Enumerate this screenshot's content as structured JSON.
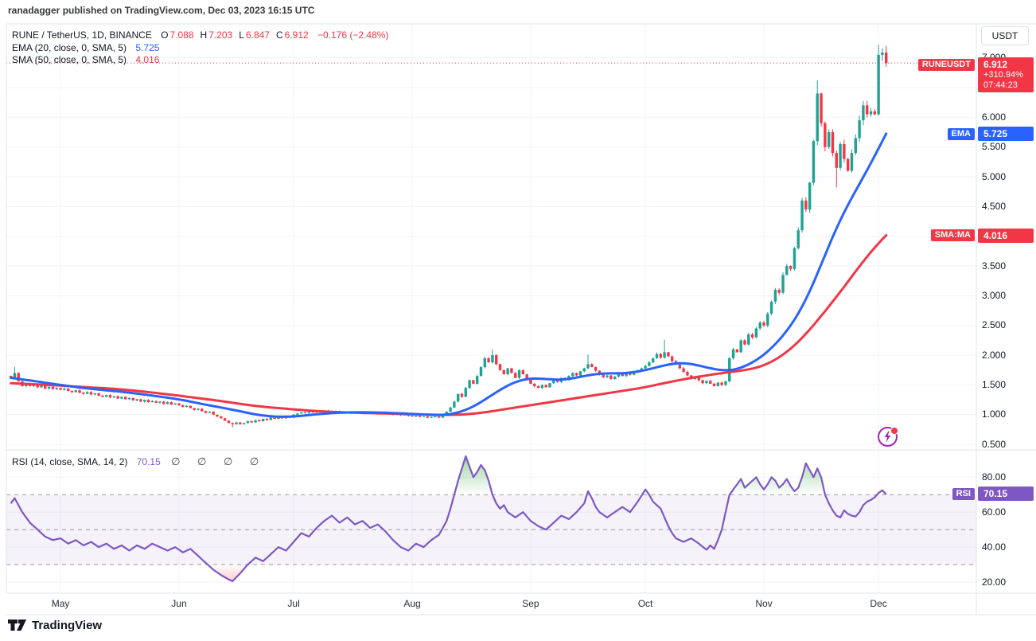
{
  "header": {
    "published_line": "ranadagger published on TradingView.com, Dec 03, 2023 16:15 UTC"
  },
  "legend": {
    "symbol_title": "RUNE / TetherUS, 1D, BINANCE",
    "ohlc": [
      {
        "k": "O",
        "v": "7.088"
      },
      {
        "k": "H",
        "v": "7.203"
      },
      {
        "k": "L",
        "v": "6.847"
      },
      {
        "k": "C",
        "v": "6.912"
      }
    ],
    "change": "−0.176 (−2.48%)",
    "ema_label": "EMA (20, close, 0, SMA, 5)",
    "ema_value": "5.725",
    "sma_label": "SMA (50, close, 0, SMA, 5)",
    "sma_value": "4.016",
    "rsi_label": "RSI (14, close, SMA, 14, 2)",
    "rsi_value": "70.15",
    "rsi_empty_slots": "∅ ∅ ∅ ∅"
  },
  "axis": {
    "currency_button": "USDT",
    "price_ticks": [
      {
        "label": "7.000",
        "v": 7.0
      },
      {
        "label": "6.000",
        "v": 6.0
      },
      {
        "label": "5.500",
        "v": 5.5
      },
      {
        "label": "5.000",
        "v": 5.0
      },
      {
        "label": "4.500",
        "v": 4.5
      },
      {
        "label": "3.500",
        "v": 3.5
      },
      {
        "label": "3.000",
        "v": 3.0
      },
      {
        "label": "2.500",
        "v": 2.5
      },
      {
        "label": "2.000",
        "v": 2.0
      },
      {
        "label": "1.500",
        "v": 1.5
      },
      {
        "label": "1.000",
        "v": 1.0
      },
      {
        "label": "0.500",
        "v": 0.5
      }
    ],
    "rsi_ticks": [
      {
        "label": "80.00",
        "v": 80
      },
      {
        "label": "60.00",
        "v": 60
      },
      {
        "label": "40.00",
        "v": 40
      },
      {
        "label": "20.00",
        "v": 20
      }
    ],
    "months": [
      {
        "label": "May",
        "i": 13
      },
      {
        "label": "Jun",
        "i": 44
      },
      {
        "label": "Jul",
        "i": 74
      },
      {
        "label": "Aug",
        "i": 105
      },
      {
        "label": "Sep",
        "i": 136
      },
      {
        "label": "Oct",
        "i": 166
      },
      {
        "label": "Nov",
        "i": 197
      },
      {
        "label": "Dec",
        "i": 227
      }
    ]
  },
  "tags": {
    "symbol": {
      "name": "RUNEUSDT",
      "price": "6.912",
      "change": "+310.94%",
      "countdown": "07:44:23"
    },
    "ema": {
      "name": "EMA",
      "value": "5.725"
    },
    "sma": {
      "name": "SMA:MA",
      "value": "4.016"
    },
    "rsi": {
      "name": "RSI",
      "value": "70.15"
    }
  },
  "footer": {
    "logo_text": "TradingView"
  },
  "colors": {
    "up": "#1fa294",
    "down": "#f23645",
    "ema": "#2962ff",
    "sma": "#f23645",
    "rsi": "#7e57c2",
    "grid": "#f0f3fa",
    "border": "#e0e3eb",
    "dashed": "#787b86",
    "text": "#131722",
    "band": "rgba(126,87,194,0.08)",
    "overbought_fill": "#4caf50",
    "oversold_fill": "#f23645",
    "dotted_price_line": "#f23645"
  },
  "chart_data": {
    "type": "candlestick",
    "title": "RUNE / TetherUS, 1D, BINANCE",
    "interval": "1D",
    "legend_position": "top-left",
    "grid": true,
    "price_axis": {
      "min": 0.5,
      "max": 7.0,
      "step": 0.5
    },
    "rsi_axis": {
      "min": 20,
      "max": 80,
      "levels": {
        "overbought": 70,
        "mid": 50,
        "oversold": 30
      }
    },
    "x_axis_months": [
      "May",
      "Jun",
      "Jul",
      "Aug",
      "Sep",
      "Oct",
      "Nov",
      "Dec"
    ],
    "last_candle": {
      "o": 7.088,
      "h": 7.203,
      "l": 6.847,
      "c": 6.912
    },
    "current_price": 6.912,
    "closes": [
      1.62,
      1.7,
      1.56,
      1.48,
      1.52,
      1.48,
      1.5,
      1.46,
      1.49,
      1.44,
      1.47,
      1.43,
      1.45,
      1.42,
      1.44,
      1.4,
      1.38,
      1.41,
      1.37,
      1.35,
      1.38,
      1.34,
      1.36,
      1.32,
      1.3,
      1.33,
      1.29,
      1.31,
      1.27,
      1.3,
      1.26,
      1.28,
      1.24,
      1.26,
      1.22,
      1.25,
      1.21,
      1.23,
      1.2,
      1.22,
      1.18,
      1.21,
      1.17,
      1.19,
      1.16,
      1.13,
      1.15,
      1.11,
      1.08,
      1.1,
      1.06,
      1.03,
      1.05,
      1.0,
      0.97,
      0.94,
      0.9,
      0.86,
      0.84,
      0.87,
      0.84,
      0.86,
      0.89,
      0.87,
      0.91,
      0.89,
      0.93,
      0.91,
      0.95,
      0.93,
      0.96,
      0.94,
      0.97,
      0.95,
      1.0,
      1.02,
      1.04,
      1.03,
      1.05,
      1.04,
      1.06,
      1.05,
      1.07,
      1.06,
      1.05,
      1.06,
      1.04,
      1.05,
      1.03,
      1.04,
      1.05,
      1.03,
      1.04,
      1.02,
      1.03,
      1.04,
      1.02,
      1.03,
      1.01,
      1.02,
      1.0,
      1.01,
      0.99,
      1.0,
      0.98,
      0.97,
      0.98,
      0.96,
      0.97,
      0.95,
      0.96,
      0.97,
      0.95,
      1.0,
      1.05,
      1.12,
      1.22,
      1.35,
      1.3,
      1.45,
      1.58,
      1.52,
      1.65,
      1.8,
      1.95,
      1.88,
      2.0,
      1.85,
      1.75,
      1.68,
      1.78,
      1.7,
      1.62,
      1.75,
      1.68,
      1.6,
      1.52,
      1.48,
      1.45,
      1.5,
      1.46,
      1.53,
      1.58,
      1.55,
      1.62,
      1.58,
      1.65,
      1.7,
      1.66,
      1.73,
      1.78,
      1.85,
      1.8,
      1.74,
      1.68,
      1.63,
      1.66,
      1.6,
      1.64,
      1.68,
      1.65,
      1.7,
      1.67,
      1.72,
      1.75,
      1.78,
      1.82,
      1.88,
      1.95,
      2.02,
      1.96,
      2.05,
      1.98,
      1.9,
      1.84,
      1.78,
      1.72,
      1.66,
      1.6,
      1.64,
      1.58,
      1.53,
      1.57,
      1.52,
      1.48,
      1.54,
      1.5,
      1.56,
      1.95,
      2.1,
      2.05,
      2.25,
      2.18,
      2.35,
      2.3,
      2.45,
      2.55,
      2.5,
      2.7,
      2.9,
      3.1,
      3.05,
      3.35,
      3.5,
      3.45,
      3.8,
      4.1,
      4.6,
      4.45,
      4.9,
      5.6,
      6.4,
      5.9,
      5.5,
      5.75,
      5.4,
      5.15,
      5.55,
      5.3,
      5.1,
      5.4,
      5.65,
      5.95,
      6.2,
      6.05,
      6.1,
      6.05,
      7.05,
      7.088,
      6.912
    ],
    "overrides": {
      "1": {
        "h": 1.8
      },
      "58": {
        "l": 0.79
      },
      "126": {
        "h": 2.1
      },
      "151": {
        "h": 2.01
      },
      "171": {
        "h": 2.26
      },
      "211": {
        "h": 6.62
      },
      "216": {
        "l": 4.82
      },
      "227": {
        "o": 6.05,
        "h": 7.22,
        "l": 6.02
      },
      "228": {
        "h": 7.16,
        "l": 6.95
      },
      "229": {
        "o": 7.088,
        "h": 7.203,
        "l": 6.847,
        "c": 6.912
      }
    },
    "ema20": [
      [
        0,
        1.62
      ],
      [
        10,
        1.53
      ],
      [
        13,
        1.5
      ],
      [
        20,
        1.44
      ],
      [
        25,
        1.41
      ],
      [
        30,
        1.38
      ],
      [
        36,
        1.33
      ],
      [
        44,
        1.26
      ],
      [
        50,
        1.18
      ],
      [
        55,
        1.12
      ],
      [
        60,
        1.06
      ],
      [
        64,
        1.0
      ],
      [
        68,
        0.97
      ],
      [
        72,
        0.96
      ],
      [
        76,
        0.98
      ],
      [
        82,
        1.02
      ],
      [
        88,
        1.04
      ],
      [
        94,
        1.04
      ],
      [
        100,
        1.03
      ],
      [
        106,
        1.01
      ],
      [
        112,
        0.99
      ],
      [
        115,
        1.0
      ],
      [
        118,
        1.05
      ],
      [
        121,
        1.13
      ],
      [
        124,
        1.25
      ],
      [
        127,
        1.38
      ],
      [
        130,
        1.5
      ],
      [
        133,
        1.58
      ],
      [
        136,
        1.62
      ],
      [
        140,
        1.6
      ],
      [
        144,
        1.58
      ],
      [
        148,
        1.62
      ],
      [
        152,
        1.68
      ],
      [
        156,
        1.7
      ],
      [
        160,
        1.69
      ],
      [
        164,
        1.72
      ],
      [
        168,
        1.78
      ],
      [
        172,
        1.85
      ],
      [
        176,
        1.88
      ],
      [
        180,
        1.83
      ],
      [
        184,
        1.76
      ],
      [
        188,
        1.73
      ],
      [
        192,
        1.8
      ],
      [
        196,
        1.95
      ],
      [
        198,
        2.05
      ],
      [
        200,
        2.18
      ],
      [
        202,
        2.32
      ],
      [
        204,
        2.48
      ],
      [
        206,
        2.68
      ],
      [
        208,
        2.92
      ],
      [
        210,
        3.2
      ],
      [
        212,
        3.52
      ],
      [
        214,
        3.85
      ],
      [
        216,
        4.15
      ],
      [
        218,
        4.42
      ],
      [
        220,
        4.65
      ],
      [
        222,
        4.88
      ],
      [
        224,
        5.1
      ],
      [
        226,
        5.35
      ],
      [
        228,
        5.6
      ],
      [
        229,
        5.725
      ]
    ],
    "sma50": [
      [
        0,
        1.53
      ],
      [
        13,
        1.49
      ],
      [
        20,
        1.46
      ],
      [
        25,
        1.445
      ],
      [
        30,
        1.42
      ],
      [
        36,
        1.38
      ],
      [
        44,
        1.32
      ],
      [
        50,
        1.27
      ],
      [
        55,
        1.23
      ],
      [
        60,
        1.18
      ],
      [
        65,
        1.14
      ],
      [
        70,
        1.11
      ],
      [
        74,
        1.09
      ],
      [
        80,
        1.06
      ],
      [
        86,
        1.04
      ],
      [
        92,
        1.03
      ],
      [
        98,
        1.02
      ],
      [
        104,
        1.01
      ],
      [
        110,
        1.0
      ],
      [
        114,
        0.995
      ],
      [
        118,
        1.0
      ],
      [
        122,
        1.02
      ],
      [
        126,
        1.06
      ],
      [
        130,
        1.1
      ],
      [
        134,
        1.14
      ],
      [
        138,
        1.18
      ],
      [
        142,
        1.22
      ],
      [
        146,
        1.26
      ],
      [
        150,
        1.3
      ],
      [
        154,
        1.34
      ],
      [
        158,
        1.38
      ],
      [
        162,
        1.42
      ],
      [
        166,
        1.46
      ],
      [
        170,
        1.52
      ],
      [
        174,
        1.57
      ],
      [
        178,
        1.62
      ],
      [
        182,
        1.66
      ],
      [
        186,
        1.7
      ],
      [
        190,
        1.73
      ],
      [
        194,
        1.77
      ],
      [
        196,
        1.8
      ],
      [
        198,
        1.85
      ],
      [
        200,
        1.92
      ],
      [
        202,
        2.0
      ],
      [
        204,
        2.1
      ],
      [
        206,
        2.22
      ],
      [
        208,
        2.35
      ],
      [
        210,
        2.5
      ],
      [
        212,
        2.66
      ],
      [
        214,
        2.82
      ],
      [
        216,
        2.98
      ],
      [
        218,
        3.15
      ],
      [
        220,
        3.32
      ],
      [
        222,
        3.5
      ],
      [
        224,
        3.66
      ],
      [
        226,
        3.82
      ],
      [
        228,
        3.95
      ],
      [
        229,
        4.016
      ]
    ],
    "rsi14": [
      [
        0,
        65
      ],
      [
        1,
        68
      ],
      [
        3,
        60
      ],
      [
        5,
        54
      ],
      [
        7,
        50
      ],
      [
        9,
        46
      ],
      [
        11,
        44
      ],
      [
        13,
        45
      ],
      [
        15,
        42
      ],
      [
        17,
        44
      ],
      [
        19,
        41
      ],
      [
        21,
        43
      ],
      [
        23,
        40
      ],
      [
        25,
        42
      ],
      [
        27,
        39
      ],
      [
        29,
        41
      ],
      [
        31,
        38
      ],
      [
        33,
        41
      ],
      [
        35,
        39
      ],
      [
        37,
        42
      ],
      [
        39,
        40
      ],
      [
        41,
        38
      ],
      [
        43,
        40
      ],
      [
        45,
        37
      ],
      [
        47,
        39
      ],
      [
        49,
        35
      ],
      [
        51,
        31
      ],
      [
        53,
        27
      ],
      [
        55,
        24
      ],
      [
        57,
        21.5
      ],
      [
        58,
        20.5
      ],
      [
        60,
        25
      ],
      [
        62,
        30
      ],
      [
        64,
        34
      ],
      [
        66,
        32
      ],
      [
        68,
        36
      ],
      [
        70,
        40
      ],
      [
        72,
        38
      ],
      [
        74,
        43
      ],
      [
        76,
        48
      ],
      [
        78,
        46
      ],
      [
        80,
        51
      ],
      [
        82,
        55
      ],
      [
        84,
        58
      ],
      [
        86,
        54
      ],
      [
        88,
        57
      ],
      [
        90,
        53
      ],
      [
        92,
        55
      ],
      [
        94,
        51
      ],
      [
        96,
        53
      ],
      [
        98,
        49
      ],
      [
        100,
        44
      ],
      [
        102,
        40
      ],
      [
        104,
        38
      ],
      [
        106,
        42
      ],
      [
        108,
        40
      ],
      [
        110,
        44
      ],
      [
        112,
        47
      ],
      [
        114,
        55
      ],
      [
        115,
        62
      ],
      [
        116,
        70
      ],
      [
        117,
        78
      ],
      [
        118,
        85
      ],
      [
        119,
        92
      ],
      [
        120,
        86
      ],
      [
        121,
        80
      ],
      [
        122,
        83
      ],
      [
        123,
        87
      ],
      [
        124,
        84
      ],
      [
        125,
        78
      ],
      [
        126,
        70
      ],
      [
        127,
        65
      ],
      [
        128,
        62
      ],
      [
        129,
        64
      ],
      [
        130,
        60
      ],
      [
        132,
        57
      ],
      [
        134,
        60
      ],
      [
        136,
        55
      ],
      [
        138,
        52
      ],
      [
        140,
        50
      ],
      [
        142,
        54
      ],
      [
        144,
        58
      ],
      [
        146,
        56
      ],
      [
        148,
        60
      ],
      [
        150,
        65
      ],
      [
        151,
        72
      ],
      [
        152,
        68
      ],
      [
        153,
        63
      ],
      [
        154,
        60
      ],
      [
        156,
        57
      ],
      [
        158,
        60
      ],
      [
        160,
        63
      ],
      [
        162,
        60
      ],
      [
        164,
        66
      ],
      [
        166,
        73
      ],
      [
        167,
        70
      ],
      [
        168,
        66
      ],
      [
        170,
        62
      ],
      [
        171,
        57
      ],
      [
        172,
        52
      ],
      [
        173,
        48
      ],
      [
        174,
        45
      ],
      [
        176,
        43
      ],
      [
        178,
        45
      ],
      [
        180,
        42
      ],
      [
        182,
        38.5
      ],
      [
        183,
        41
      ],
      [
        184,
        39
      ],
      [
        185,
        44
      ],
      [
        186,
        50
      ],
      [
        187,
        60
      ],
      [
        188,
        70
      ],
      [
        189,
        73
      ],
      [
        190,
        76
      ],
      [
        191,
        79
      ],
      [
        192,
        74
      ],
      [
        193,
        76
      ],
      [
        194,
        78
      ],
      [
        195,
        80
      ],
      [
        196,
        76
      ],
      [
        197,
        73
      ],
      [
        198,
        76
      ],
      [
        199,
        80
      ],
      [
        200,
        78
      ],
      [
        201,
        74
      ],
      [
        202,
        76
      ],
      [
        203,
        79
      ],
      [
        204,
        75
      ],
      [
        205,
        72
      ],
      [
        206,
        74
      ],
      [
        207,
        80
      ],
      [
        208,
        88
      ],
      [
        209,
        84
      ],
      [
        210,
        80
      ],
      [
        211,
        85
      ],
      [
        212,
        80
      ],
      [
        213,
        70
      ],
      [
        214,
        65
      ],
      [
        215,
        61
      ],
      [
        216,
        58
      ],
      [
        217,
        57
      ],
      [
        218,
        61
      ],
      [
        219,
        59
      ],
      [
        220,
        58
      ],
      [
        221,
        57.5
      ],
      [
        222,
        60
      ],
      [
        223,
        64
      ],
      [
        224,
        66
      ],
      [
        225,
        67
      ],
      [
        226,
        68.5
      ],
      [
        227,
        71
      ],
      [
        228,
        72.5
      ],
      [
        229,
        70.15
      ]
    ]
  }
}
